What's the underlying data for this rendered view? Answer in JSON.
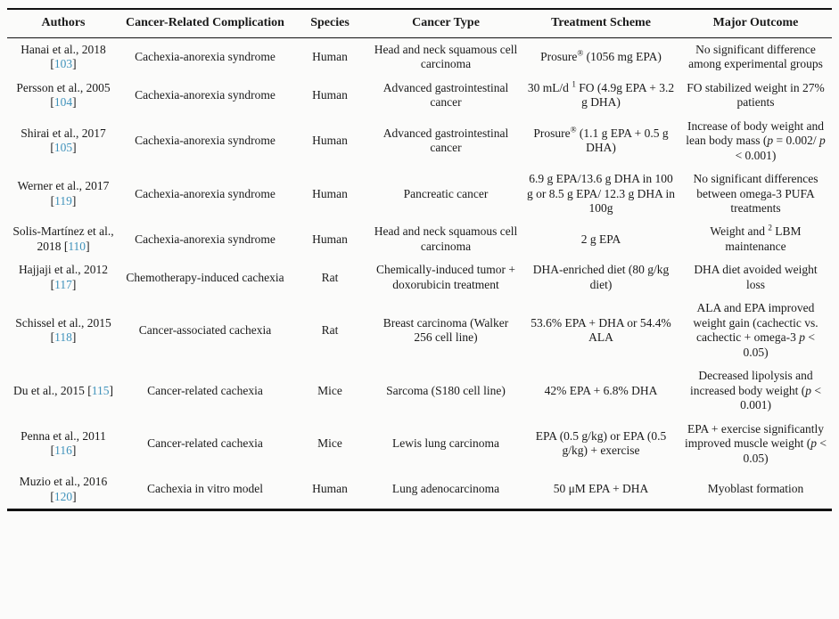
{
  "page": {
    "background_color": "#fbfbfa",
    "text_color": "#1a1a1a",
    "citation_color": "#3f92bb"
  },
  "table": {
    "columns": [
      {
        "key": "authors",
        "label": "Authors"
      },
      {
        "key": "complication",
        "label": "Cancer-Related Complication"
      },
      {
        "key": "species",
        "label": "Species"
      },
      {
        "key": "cancer_type",
        "label": "Cancer Type"
      },
      {
        "key": "treatment",
        "label": "Treatment Scheme"
      },
      {
        "key": "outcome",
        "label": "Major Outcome"
      }
    ],
    "rows": [
      {
        "authors": {
          "text": "Hanai et al., 2018",
          "ref": "103"
        },
        "complication": "Cachexia-anorexia syndrome",
        "species": "Human",
        "cancer_type": "Head and neck squamous cell carcinoma",
        "treatment": "Prosure^{®} (1056 mg EPA)",
        "outcome": "No significant difference among experimental groups"
      },
      {
        "authors": {
          "text": "Persson et al., 2005",
          "ref": "104"
        },
        "complication": "Cachexia-anorexia syndrome",
        "species": "Human",
        "cancer_type": "Advanced gastrointestinal cancer",
        "treatment": "30 mL/d ^{1} FO (4.9g EPA + 3.2 g DHA)",
        "outcome": "FO stabilized weight in 27% patients"
      },
      {
        "authors": {
          "text": "Shirai et al., 2017",
          "ref": "105"
        },
        "complication": "Cachexia-anorexia syndrome",
        "species": "Human",
        "cancer_type": "Advanced gastrointestinal cancer",
        "treatment": "Prosure^{®} (1.1 g EPA + 0.5 g DHA)",
        "outcome": "Increase of body weight and lean body mass (*p* = 0.002/ *p*  < 0.001)"
      },
      {
        "authors": {
          "text": "Werner et al., 2017",
          "ref": "119"
        },
        "complication": "Cachexia-anorexia syndrome",
        "species": "Human",
        "cancer_type": "Pancreatic cancer",
        "treatment": "6.9 g EPA/13.6 g DHA in 100 g or 8.5 g EPA/ 12.3 g DHA in 100g",
        "outcome": "No significant differences between omega-3 PUFA treatments"
      },
      {
        "authors": {
          "text": "Solis-Martínez et al., 2018",
          "ref": "110"
        },
        "complication": "Cachexia-anorexia syndrome",
        "species": "Human",
        "cancer_type": "Head and neck squamous cell carcinoma",
        "treatment": "2 g EPA",
        "outcome": "Weight and ^{2} LBM maintenance"
      },
      {
        "authors": {
          "text": "Hajjaji et al., 2012",
          "ref": "117"
        },
        "complication": "Chemotherapy-induced cachexia",
        "species": "Rat",
        "cancer_type": "Chemically-induced tumor + doxorubicin treatment",
        "treatment": "DHA-enriched diet (80 g/kg diet)",
        "outcome": "DHA diet avoided weight loss"
      },
      {
        "authors": {
          "text": "Schissel et al., 2015",
          "ref": "118"
        },
        "complication": "Cancer-associated cachexia",
        "species": "Rat",
        "cancer_type": "Breast carcinoma (Walker 256 cell line)",
        "treatment": "53.6% EPA + DHA or 54.4% ALA",
        "outcome": "ALA and EPA improved weight gain (cachectic vs. cachectic + omega-3 *p* < 0.05)"
      },
      {
        "authors": {
          "text": "Du et al., 2015",
          "ref": "115"
        },
        "complication": "Cancer-related cachexia",
        "species": "Mice",
        "cancer_type": "Sarcoma (S180 cell line)",
        "treatment": "42% EPA + 6.8% DHA",
        "outcome": "Decreased lipolysis and increased body weight (*p* < 0.001)"
      },
      {
        "authors": {
          "text": "Penna et al., 2011",
          "ref": "116"
        },
        "complication": "Cancer-related cachexia",
        "species": "Mice",
        "cancer_type": "Lewis lung carcinoma",
        "treatment": "EPA (0.5 g/kg) or EPA (0.5 g/kg) + exercise",
        "outcome": "EPA + exercise significantly improved muscle weight (*p* < 0.05)"
      },
      {
        "authors": {
          "text": "Muzio et al., 2016",
          "ref": "120"
        },
        "complication": "Cachexia in vitro model",
        "species": "Human",
        "cancer_type": "Lung adenocarcinoma",
        "treatment": "50 μM EPA + DHA",
        "outcome": "Myoblast formation"
      }
    ]
  }
}
